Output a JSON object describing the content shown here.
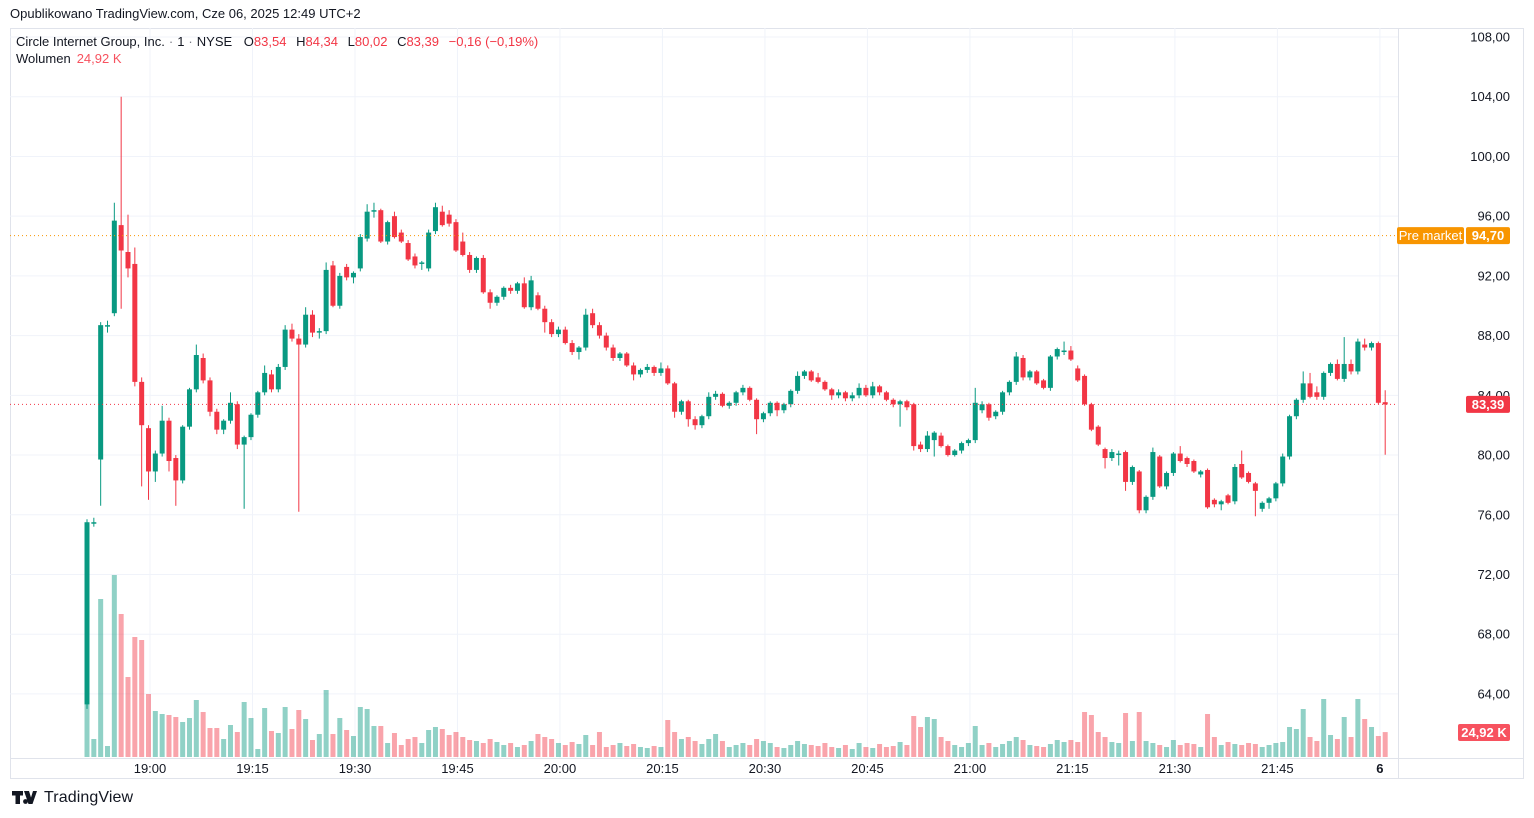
{
  "header": {
    "published": "Opublikowano TradingView.com, Cze 06, 2025 12:49 UTC+2"
  },
  "legend": {
    "symbol": "Circle Internet Group, Inc.",
    "sep": "·",
    "interval": "1",
    "exchange": "NYSE",
    "o_label": "O",
    "o": "83,54",
    "h_label": "H",
    "h": "84,34",
    "l_label": "L",
    "l": "80,02",
    "c_label": "C",
    "c": "83,39",
    "change": "−0,16 (−0,19%)",
    "volume_label": "Wolumen",
    "volume_value": "24,92 K"
  },
  "footer": {
    "brand": "TradingView"
  },
  "colors": {
    "up": "#089981",
    "down": "#F23645",
    "vol_up": "rgba(8,153,129,0.45)",
    "vol_down": "rgba(242,54,69,0.45)",
    "premarket": "#F89500",
    "last_price_bg": "#F23645",
    "volume_label_bg": "#F7525F",
    "grid": "#F0F3FA",
    "axis_text": "#131722",
    "frame": "#E0E3EB"
  },
  "chart_data": {
    "type": "candlestick_with_volume",
    "title": "Circle Internet Group, Inc. 1m NYSE",
    "interval_minutes": 1,
    "start_time": "18:51",
    "price_ticks": [
      {
        "v": 108,
        "label": "108,00"
      },
      {
        "v": 104,
        "label": "104,00"
      },
      {
        "v": 100,
        "label": "100,00"
      },
      {
        "v": 96,
        "label": "96,00"
      },
      {
        "v": 92,
        "label": "92,00"
      },
      {
        "v": 88,
        "label": "88,00"
      },
      {
        "v": 84,
        "label": "84,00"
      },
      {
        "v": 80,
        "label": "80,00"
      },
      {
        "v": 76,
        "label": "76,00"
      },
      {
        "v": 72,
        "label": "72,00"
      },
      {
        "v": 68,
        "label": "68,00"
      },
      {
        "v": 64,
        "label": "64,00"
      }
    ],
    "time_ticks": [
      {
        "label": "19:00"
      },
      {
        "label": "19:15"
      },
      {
        "label": "19:30"
      },
      {
        "label": "19:45"
      },
      {
        "label": "20:00"
      },
      {
        "label": "20:15"
      },
      {
        "label": "20:30"
      },
      {
        "label": "20:45"
      },
      {
        "label": "21:00"
      },
      {
        "label": "21:15"
      },
      {
        "label": "21:30"
      },
      {
        "label": "21:45"
      },
      {
        "label": "6",
        "bold": true
      }
    ],
    "premarket_line": {
      "label": "Pre market",
      "value_label": "94,70",
      "price": 94.7
    },
    "last_price_line": {
      "value_label": "83,39",
      "price": 83.39
    },
    "last_volume_label": "24,92 K",
    "ylim": [
      59.5,
      108.5
    ],
    "candles": [
      [
        63.3,
        75.7,
        63.0,
        75.5,
        176
      ],
      [
        75.4,
        75.8,
        75.2,
        75.5,
        18
      ],
      [
        79.7,
        88.9,
        76.6,
        88.7,
        158
      ],
      [
        88.6,
        89.0,
        88.2,
        88.7,
        11
      ],
      [
        89.5,
        96.9,
        89.3,
        95.7,
        182
      ],
      [
        95.4,
        104.0,
        89.8,
        93.7,
        143
      ],
      [
        93.6,
        96.1,
        91.9,
        92.5,
        80
      ],
      [
        92.8,
        93.9,
        84.6,
        84.9,
        120
      ],
      [
        84.9,
        85.2,
        77.9,
        82.0,
        117
      ],
      [
        81.8,
        82.0,
        77.0,
        78.9,
        63
      ],
      [
        78.9,
        80.3,
        78.2,
        80.1,
        46
      ],
      [
        80.1,
        83.3,
        79.9,
        82.3,
        43
      ],
      [
        82.3,
        82.5,
        78.9,
        79.6,
        42
      ],
      [
        79.8,
        80.0,
        76.6,
        78.3,
        40
      ],
      [
        78.3,
        82.0,
        78.1,
        81.9,
        35
      ],
      [
        81.9,
        84.5,
        81.7,
        84.4,
        39
      ],
      [
        84.4,
        87.4,
        84.2,
        86.7,
        57
      ],
      [
        86.5,
        86.8,
        84.8,
        85.0,
        45
      ],
      [
        85.0,
        85.2,
        82.6,
        82.9,
        29
      ],
      [
        82.9,
        83.1,
        81.4,
        81.7,
        29
      ],
      [
        81.7,
        82.4,
        81.4,
        82.3,
        18
      ],
      [
        82.3,
        84.2,
        82.1,
        83.5,
        32
      ],
      [
        83.4,
        83.6,
        80.4,
        80.7,
        25
      ],
      [
        80.7,
        81.3,
        76.4,
        81.2,
        55
      ],
      [
        81.2,
        82.8,
        81.0,
        82.7,
        39
      ],
      [
        82.7,
        84.3,
        82.5,
        84.2,
        8
      ],
      [
        84.2,
        86.0,
        84.0,
        85.5,
        49
      ],
      [
        85.4,
        85.7,
        84.2,
        84.4,
        26
      ],
      [
        84.4,
        86.1,
        84.2,
        85.9,
        24
      ],
      [
        85.9,
        88.7,
        85.7,
        88.4,
        50
      ],
      [
        88.4,
        88.8,
        87.6,
        87.8,
        28
      ],
      [
        87.8,
        88.1,
        76.2,
        87.4,
        47
      ],
      [
        87.4,
        89.9,
        87.2,
        89.4,
        38
      ],
      [
        89.4,
        89.7,
        87.9,
        88.2,
        17
      ],
      [
        88.2,
        88.5,
        87.8,
        88.3,
        23
      ],
      [
        88.3,
        92.9,
        88.1,
        92.4,
        67
      ],
      [
        92.7,
        93.0,
        89.9,
        90.0,
        23
      ],
      [
        90.0,
        92.2,
        89.8,
        92.0,
        39
      ],
      [
        92.6,
        92.8,
        91.7,
        91.9,
        27
      ],
      [
        91.9,
        92.3,
        91.5,
        92.2,
        21
      ],
      [
        92.5,
        94.8,
        92.3,
        94.6,
        50
      ],
      [
        94.5,
        96.8,
        94.3,
        96.3,
        48
      ],
      [
        96.3,
        96.9,
        95.9,
        96.4,
        31
      ],
      [
        96.4,
        96.5,
        94.2,
        94.3,
        31
      ],
      [
        94.3,
        95.7,
        94.1,
        95.6,
        14
      ],
      [
        96.0,
        96.3,
        94.5,
        94.6,
        24
      ],
      [
        94.9,
        95.1,
        94.2,
        94.3,
        12
      ],
      [
        94.2,
        94.4,
        93.0,
        93.1,
        18
      ],
      [
        93.3,
        93.5,
        92.5,
        92.7,
        20
      ],
      [
        92.8,
        93.0,
        92.4,
        92.9,
        14
      ],
      [
        92.5,
        95.1,
        92.3,
        94.9,
        27
      ],
      [
        95.0,
        96.9,
        94.8,
        96.6,
        30
      ],
      [
        96.3,
        96.7,
        95.3,
        95.4,
        28
      ],
      [
        96.1,
        96.4,
        95.3,
        95.5,
        22
      ],
      [
        95.6,
        95.8,
        93.6,
        93.7,
        25
      ],
      [
        94.3,
        94.9,
        93.3,
        93.4,
        20
      ],
      [
        93.4,
        93.6,
        92.2,
        92.4,
        17
      ],
      [
        92.4,
        93.3,
        92.2,
        93.2,
        16
      ],
      [
        93.2,
        93.4,
        90.8,
        90.9,
        14
      ],
      [
        90.9,
        91.1,
        89.8,
        90.2,
        18
      ],
      [
        90.2,
        90.7,
        90.0,
        90.6,
        15
      ],
      [
        90.6,
        91.3,
        90.4,
        91.2,
        12
      ],
      [
        91.2,
        91.4,
        90.8,
        91.0,
        14
      ],
      [
        91.0,
        91.6,
        90.8,
        91.5,
        10
      ],
      [
        91.5,
        91.9,
        89.8,
        89.9,
        12
      ],
      [
        89.9,
        92.0,
        89.7,
        91.7,
        16
      ],
      [
        90.7,
        90.9,
        89.7,
        89.8,
        23
      ],
      [
        89.8,
        90.0,
        88.2,
        88.9,
        20
      ],
      [
        88.9,
        89.1,
        87.9,
        88.1,
        18
      ],
      [
        88.1,
        88.6,
        87.9,
        88.4,
        14
      ],
      [
        88.4,
        88.6,
        87.4,
        87.5,
        12
      ],
      [
        87.5,
        87.7,
        86.7,
        86.9,
        15
      ],
      [
        86.9,
        87.3,
        86.4,
        87.2,
        13
      ],
      [
        87.2,
        89.8,
        87.0,
        89.4,
        22
      ],
      [
        89.5,
        89.8,
        88.5,
        88.7,
        12
      ],
      [
        88.7,
        88.9,
        87.8,
        88.0,
        25
      ],
      [
        88.0,
        88.2,
        87.0,
        87.2,
        10
      ],
      [
        87.2,
        87.4,
        86.3,
        86.5,
        12
      ],
      [
        86.5,
        86.9,
        86.3,
        86.8,
        14
      ],
      [
        86.8,
        86.9,
        85.9,
        86.0,
        11
      ],
      [
        86.0,
        86.2,
        85.0,
        85.4,
        13
      ],
      [
        85.4,
        85.8,
        85.2,
        85.7,
        10
      ],
      [
        85.7,
        86.1,
        85.5,
        85.9,
        9
      ],
      [
        85.9,
        86.0,
        85.3,
        85.5,
        11
      ],
      [
        85.5,
        86.2,
        85.3,
        85.8,
        10
      ],
      [
        85.8,
        86.0,
        84.7,
        84.8,
        37
      ],
      [
        84.8,
        84.9,
        82.5,
        82.9,
        25
      ],
      [
        82.9,
        83.7,
        82.7,
        83.6,
        18
      ],
      [
        83.6,
        83.7,
        81.9,
        82.4,
        20
      ],
      [
        82.4,
        82.6,
        81.7,
        82.0,
        16
      ],
      [
        82.0,
        82.7,
        81.8,
        82.6,
        13
      ],
      [
        82.6,
        84.2,
        82.4,
        83.9,
        18
      ],
      [
        83.9,
        84.3,
        83.7,
        84.1,
        23
      ],
      [
        84.1,
        84.2,
        83.2,
        83.3,
        16
      ],
      [
        83.3,
        83.6,
        83.1,
        83.5,
        10
      ],
      [
        83.5,
        84.3,
        83.3,
        84.2,
        12
      ],
      [
        84.2,
        84.7,
        84.0,
        84.5,
        14
      ],
      [
        84.5,
        84.6,
        83.6,
        83.7,
        12
      ],
      [
        83.7,
        83.8,
        81.4,
        82.4,
        18
      ],
      [
        82.4,
        82.9,
        82.2,
        82.8,
        16
      ],
      [
        82.8,
        83.6,
        82.6,
        83.5,
        14
      ],
      [
        83.5,
        83.6,
        82.6,
        83.0,
        10
      ],
      [
        83.0,
        83.5,
        82.8,
        83.4,
        9
      ],
      [
        83.4,
        84.4,
        83.2,
        84.3,
        12
      ],
      [
        84.3,
        85.6,
        84.1,
        85.3,
        16
      ],
      [
        85.3,
        85.7,
        85.1,
        85.6,
        13
      ],
      [
        85.6,
        85.7,
        84.9,
        85.0,
        12
      ],
      [
        85.2,
        85.5,
        84.8,
        84.9,
        11
      ],
      [
        84.9,
        85.0,
        84.3,
        84.4,
        14
      ],
      [
        84.4,
        84.5,
        83.7,
        84.0,
        10
      ],
      [
        84.0,
        84.4,
        83.8,
        84.2,
        9
      ],
      [
        84.2,
        84.3,
        83.6,
        83.8,
        12
      ],
      [
        83.8,
        84.2,
        83.6,
        84.0,
        8
      ],
      [
        84.0,
        84.8,
        83.8,
        84.5,
        14
      ],
      [
        84.5,
        84.7,
        83.9,
        84.0,
        10
      ],
      [
        84.0,
        84.9,
        83.8,
        84.6,
        9
      ],
      [
        84.6,
        84.7,
        84.0,
        84.2,
        13
      ],
      [
        84.2,
        84.3,
        83.6,
        83.7,
        10
      ],
      [
        83.7,
        83.8,
        83.2,
        83.4,
        11
      ],
      [
        83.4,
        83.7,
        81.9,
        83.6,
        15
      ],
      [
        83.6,
        83.7,
        83.0,
        83.2,
        12
      ],
      [
        83.4,
        83.5,
        80.3,
        80.6,
        41
      ],
      [
        80.7,
        80.9,
        80.2,
        80.4,
        30
      ],
      [
        80.4,
        81.6,
        80.2,
        81.3,
        40
      ],
      [
        81.0,
        81.6,
        79.9,
        81.5,
        38
      ],
      [
        81.3,
        81.5,
        80.5,
        80.6,
        20
      ],
      [
        80.6,
        80.7,
        79.9,
        80.0,
        16
      ],
      [
        80.0,
        80.4,
        79.9,
        80.3,
        12
      ],
      [
        80.3,
        80.9,
        80.1,
        80.8,
        10
      ],
      [
        80.8,
        81.1,
        80.6,
        81.0,
        14
      ],
      [
        81.0,
        84.5,
        80.8,
        83.5,
        31
      ],
      [
        83.0,
        83.6,
        82.8,
        83.4,
        12
      ],
      [
        83.4,
        83.5,
        82.3,
        82.5,
        14
      ],
      [
        82.6,
        83.0,
        82.4,
        82.9,
        10
      ],
      [
        82.9,
        84.3,
        82.7,
        84.2,
        13
      ],
      [
        84.2,
        85.0,
        84.0,
        84.9,
        16
      ],
      [
        84.9,
        86.9,
        84.7,
        86.6,
        20
      ],
      [
        86.5,
        86.7,
        85.0,
        85.2,
        17
      ],
      [
        85.2,
        85.7,
        85.0,
        85.6,
        12
      ],
      [
        85.6,
        85.7,
        84.7,
        84.8,
        11
      ],
      [
        85.0,
        85.1,
        84.4,
        84.5,
        10
      ],
      [
        84.5,
        86.7,
        84.3,
        86.6,
        13
      ],
      [
        86.6,
        87.2,
        86.4,
        87.1,
        17
      ],
      [
        86.9,
        87.6,
        86.7,
        87.0,
        15
      ],
      [
        87.0,
        87.3,
        86.3,
        86.4,
        17
      ],
      [
        85.8,
        86.0,
        84.9,
        85.0,
        15
      ],
      [
        85.3,
        85.4,
        83.3,
        83.4,
        45
      ],
      [
        83.4,
        83.5,
        81.6,
        81.7,
        42
      ],
      [
        81.9,
        82.0,
        80.6,
        80.7,
        25
      ],
      [
        80.4,
        80.5,
        79.1,
        79.8,
        20
      ],
      [
        79.8,
        80.4,
        79.6,
        80.2,
        15
      ],
      [
        80.0,
        80.3,
        79.3,
        80.1,
        14
      ],
      [
        80.2,
        80.3,
        77.6,
        78.2,
        44
      ],
      [
        78.2,
        79.3,
        78.0,
        79.2,
        16
      ],
      [
        78.9,
        79.0,
        76.1,
        76.3,
        45
      ],
      [
        76.3,
        77.3,
        76.1,
        77.2,
        16
      ],
      [
        77.2,
        80.5,
        77.0,
        80.2,
        14
      ],
      [
        79.9,
        80.0,
        77.8,
        77.9,
        12
      ],
      [
        77.9,
        78.9,
        77.7,
        78.8,
        10
      ],
      [
        78.8,
        80.2,
        78.6,
        80.1,
        17
      ],
      [
        80.1,
        80.6,
        79.5,
        79.6,
        12
      ],
      [
        79.8,
        79.9,
        79.2,
        79.4,
        14
      ],
      [
        79.6,
        79.7,
        78.8,
        78.9,
        13
      ],
      [
        78.7,
        79.0,
        78.5,
        78.9,
        10
      ],
      [
        79.0,
        79.1,
        76.4,
        76.5,
        43
      ],
      [
        77.0,
        77.1,
        76.5,
        76.7,
        20
      ],
      [
        76.7,
        77.0,
        76.3,
        76.9,
        12
      ],
      [
        77.3,
        77.4,
        76.7,
        76.8,
        15
      ],
      [
        76.9,
        79.4,
        76.7,
        79.2,
        13
      ],
      [
        79.4,
        80.3,
        78.4,
        78.5,
        12
      ],
      [
        78.8,
        78.9,
        78.1,
        78.2,
        14
      ],
      [
        78.1,
        78.2,
        75.9,
        77.6,
        13
      ],
      [
        76.4,
        76.9,
        76.2,
        76.8,
        10
      ],
      [
        76.8,
        77.2,
        76.4,
        77.1,
        12
      ],
      [
        77.1,
        78.2,
        76.9,
        78.1,
        14
      ],
      [
        78.1,
        80.1,
        77.9,
        79.9,
        15
      ],
      [
        79.9,
        82.7,
        79.7,
        82.6,
        30
      ],
      [
        82.6,
        83.8,
        82.4,
        83.7,
        28
      ],
      [
        83.7,
        85.6,
        83.5,
        84.8,
        48
      ],
      [
        84.8,
        85.5,
        83.8,
        83.9,
        20
      ],
      [
        84.2,
        84.6,
        83.7,
        83.9,
        16
      ],
      [
        83.9,
        85.6,
        83.7,
        85.5,
        58
      ],
      [
        85.5,
        86.2,
        85.3,
        86.1,
        22
      ],
      [
        86.1,
        86.4,
        85.0,
        85.1,
        18
      ],
      [
        85.1,
        87.9,
        84.9,
        86.1,
        40
      ],
      [
        86.1,
        86.4,
        85.4,
        85.6,
        20
      ],
      [
        85.6,
        87.8,
        85.4,
        87.6,
        58
      ],
      [
        87.4,
        87.8,
        87.0,
        87.2,
        38
      ],
      [
        87.2,
        87.6,
        87.0,
        87.5,
        30
      ],
      [
        87.5,
        87.6,
        83.4,
        83.5,
        21
      ],
      [
        83.54,
        84.34,
        80.02,
        83.39,
        24.92
      ]
    ]
  }
}
